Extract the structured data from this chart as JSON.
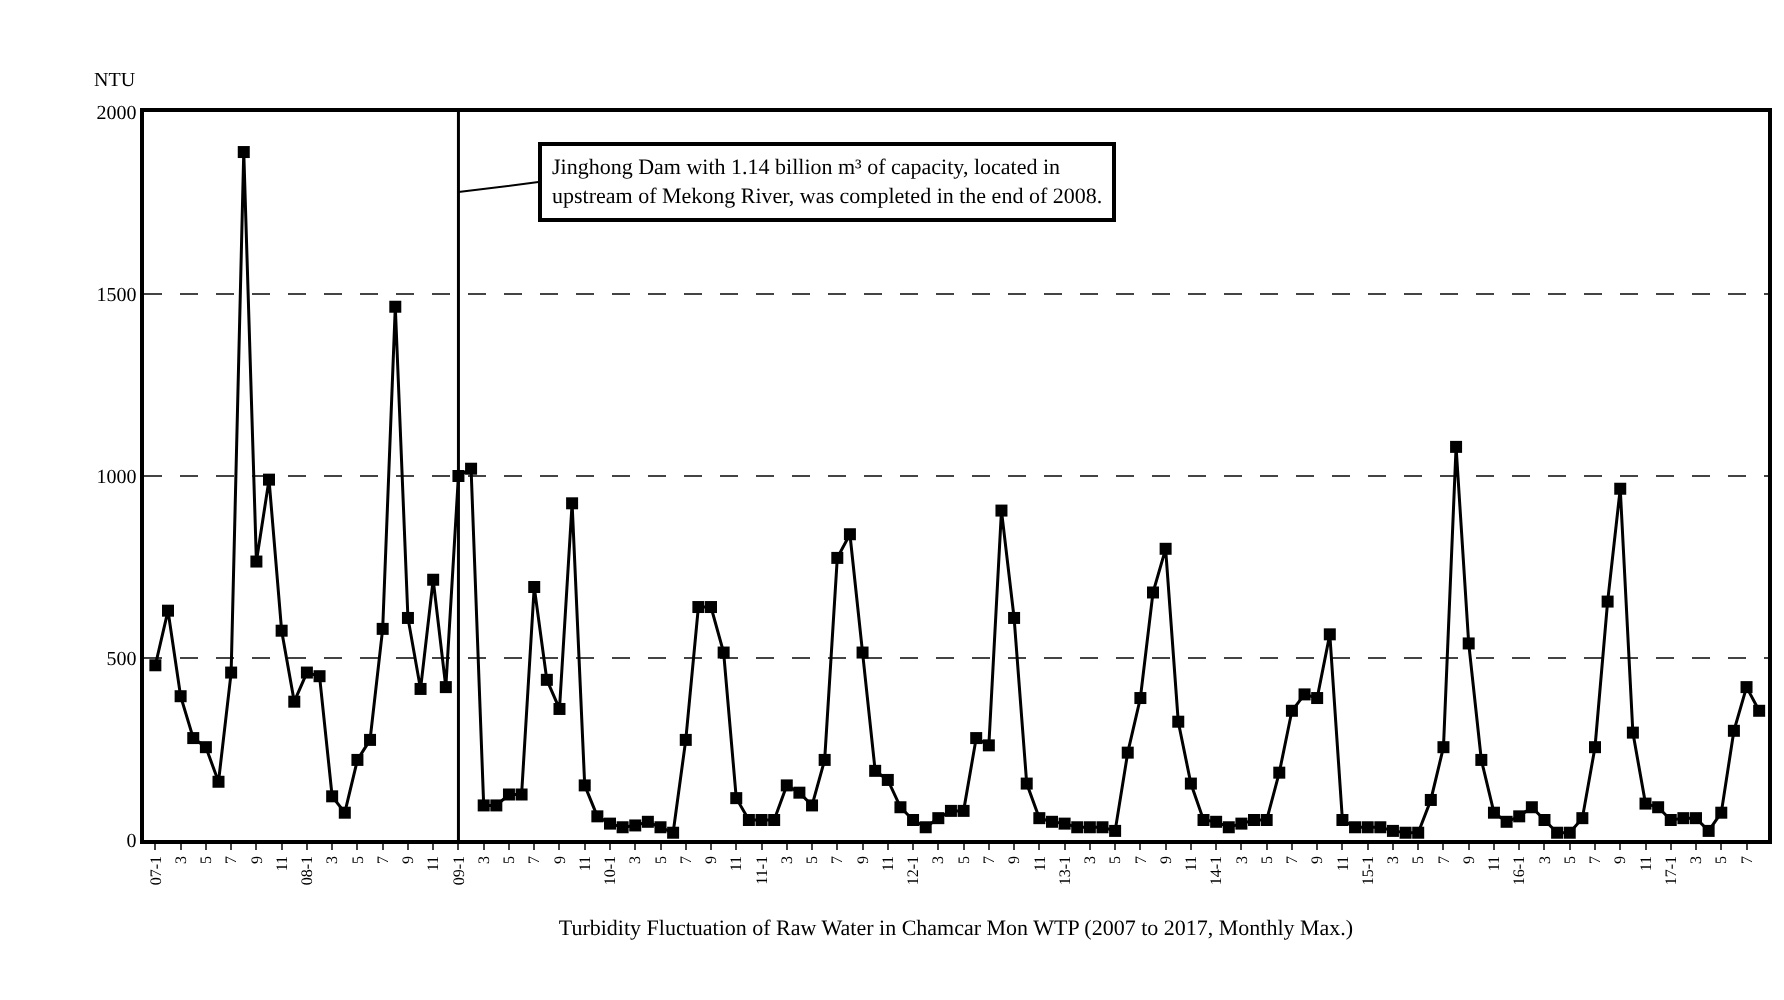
{
  "chart_data": {
    "type": "line",
    "xlabel": "Turbidity Fluctuation of Raw Water in Chamcar Mon WTP (2007 to 2017, Monthly Max.)",
    "ylabel": "NTU",
    "categories": [
      "07-1",
      null,
      "3",
      null,
      "5",
      null,
      "7",
      null,
      "9",
      null,
      "11",
      null,
      "08-1",
      null,
      "3",
      null,
      "5",
      null,
      "7",
      null,
      "9",
      null,
      "11",
      null,
      "09-1",
      null,
      "3",
      null,
      "5",
      null,
      "7",
      null,
      "9",
      null,
      "11",
      null,
      "10-1",
      null,
      "3",
      null,
      "5",
      null,
      "7",
      null,
      "9",
      null,
      "11",
      null,
      "11-1",
      null,
      "3",
      null,
      "5",
      null,
      "7",
      null,
      "9",
      null,
      "11",
      null,
      "12-1",
      null,
      "3",
      null,
      "5",
      null,
      "7",
      null,
      "9",
      null,
      "11",
      null,
      "13-1",
      null,
      "3",
      null,
      "5",
      null,
      "7",
      null,
      "9",
      null,
      "11",
      null,
      "14-1",
      null,
      "3",
      null,
      "5",
      null,
      "7",
      null,
      "9",
      null,
      "11",
      null,
      "15-1",
      null,
      "3",
      null,
      "5",
      null,
      "7",
      null,
      "9",
      null,
      "11",
      null,
      "16-1",
      null,
      "3",
      null,
      "5",
      null,
      "7",
      null,
      "9",
      null,
      "11",
      null,
      "17-1",
      null,
      "3",
      null,
      "5",
      null,
      "7",
      null
    ],
    "series": [
      {
        "color": "#000000",
        "values": [
          480,
          630,
          395,
          280,
          255,
          160,
          460,
          1890,
          765,
          990,
          575,
          380,
          460,
          450,
          120,
          75,
          220,
          275,
          580,
          1465,
          610,
          415,
          715,
          420,
          1000,
          1020,
          95,
          95,
          125,
          125,
          695,
          440,
          360,
          925,
          150,
          65,
          45,
          35,
          40,
          50,
          35,
          20,
          275,
          640,
          640,
          515,
          115,
          55,
          55,
          55,
          150,
          130,
          95,
          220,
          775,
          840,
          515,
          190,
          165,
          90,
          55,
          35,
          60,
          80,
          80,
          280,
          260,
          905,
          610,
          155,
          60,
          50,
          45,
          35,
          35,
          35,
          25,
          240,
          390,
          680,
          800,
          325,
          155,
          55,
          50,
          35,
          45,
          55,
          55,
          185,
          355,
          400,
          390,
          565,
          55,
          35,
          35,
          35,
          25,
          20,
          20,
          110,
          255,
          1080,
          540,
          220,
          75,
          50,
          65,
          90,
          55,
          20,
          20,
          60,
          255,
          655,
          965,
          295,
          100,
          90,
          55,
          60,
          60,
          25,
          75,
          300,
          420,
          355
        ]
      }
    ],
    "ylim": [
      0,
      2000
    ],
    "yticks": [
      0,
      500,
      1000,
      1500,
      2000
    ],
    "grid": "y",
    "marker": "square",
    "line_style": "solid",
    "ref_lines": [
      {
        "axis": "x",
        "value": "09-1",
        "color": "#000000"
      }
    ],
    "annotations": [
      {
        "text": "Jinghong Dam with 1.14 billion m³ of capacity, located in\nupstream of Mekong River, was completed in the end of 2008.",
        "x": "09-1",
        "y": 1780
      }
    ]
  }
}
